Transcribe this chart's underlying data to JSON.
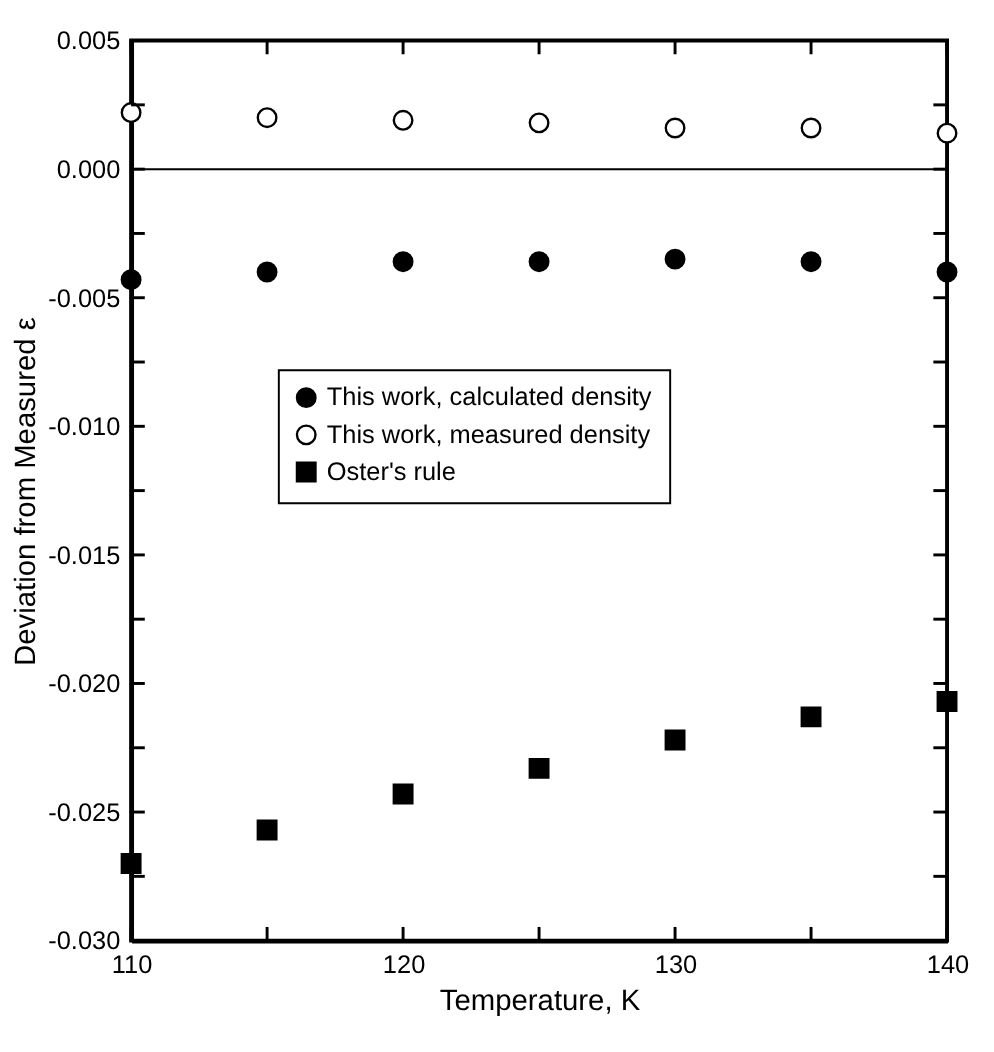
{
  "chart_data": {
    "type": "scatter",
    "xlabel": "Temperature, K",
    "ylabel": "Deviation from Measured ε",
    "x": [
      110,
      115,
      120,
      125,
      130,
      135,
      140
    ],
    "series": [
      {
        "name": "This work, calculated density",
        "color": "#000000",
        "marker": "circle",
        "values": [
          -0.0043,
          -0.004,
          -0.0036,
          -0.0036,
          -0.0035,
          -0.0036,
          -0.004
        ]
      },
      {
        "name": "This work, measured density",
        "color": "#ffffff",
        "marker": "circle",
        "values": [
          0.0022,
          0.002,
          0.0019,
          0.0018,
          0.0016,
          0.0016,
          0.0014
        ]
      },
      {
        "name": "Oster's rule",
        "color": "#000000",
        "marker": "square",
        "values": [
          -0.027,
          -0.0257,
          -0.0243,
          -0.0233,
          -0.0222,
          -0.0213,
          -0.0207
        ]
      }
    ],
    "xlim": [
      110,
      140
    ],
    "xticks": [
      110,
      {
        "value": 115,
        "label": null
      },
      120,
      {
        "value": 125,
        "label": null
      },
      130,
      {
        "value": 135,
        "label": null
      },
      140
    ],
    "ylim": [
      -0.03,
      0.005
    ],
    "yticks": [
      {
        "value": -0.03,
        "label": "-0.030"
      },
      {
        "value": -0.0275,
        "label": null
      },
      {
        "value": -0.025,
        "label": "-0.025"
      },
      {
        "value": -0.0225,
        "label": null
      },
      {
        "value": -0.02,
        "label": "-0.020"
      },
      {
        "value": -0.0175,
        "label": null
      },
      {
        "value": -0.015,
        "label": "-0.015"
      },
      {
        "value": -0.0125,
        "label": null
      },
      {
        "value": -0.01,
        "label": "-0.010"
      },
      {
        "value": -0.0075,
        "label": null
      },
      {
        "value": -0.005,
        "label": "-0.005"
      },
      {
        "value": -0.0025,
        "label": null
      },
      {
        "value": 0,
        "label": "0.000"
      },
      {
        "value": 0.0025,
        "label": null
      },
      {
        "value": 0.005,
        "label": "0.005"
      }
    ],
    "ref_lines": [
      {
        "axis": "y",
        "value": 0,
        "color": "#000000"
      }
    ],
    "grid": false,
    "legend": "left"
  }
}
